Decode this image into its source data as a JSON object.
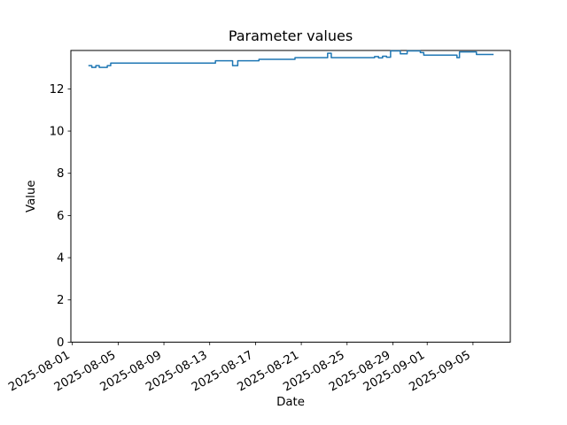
{
  "title": "Parameter values",
  "chart_data": {
    "type": "line",
    "title": "Parameter values",
    "xlabel": "Date",
    "ylabel": "Value",
    "line_color": "#1f77b4",
    "axis_color": "#000000",
    "background_color": "#ffffff",
    "legend": "none",
    "grid": false,
    "x_epoch": "2025-08-01",
    "x_tick_labels": [
      "2025-08-01",
      "2025-08-05",
      "2025-08-09",
      "2025-08-13",
      "2025-08-17",
      "2025-08-21",
      "2025-08-25",
      "2025-08-29",
      "2025-09-01",
      "2025-09-05"
    ],
    "x_tick_days": [
      0,
      4,
      8,
      12,
      16,
      20,
      24,
      28,
      31,
      35
    ],
    "x_tick_rotation_deg": 30,
    "y_ticks": [
      0,
      2,
      4,
      6,
      8,
      10,
      12
    ],
    "xlim_days": [
      -0.13,
      38.26
    ],
    "ylim": [
      0,
      13.82
    ],
    "series": [
      {
        "name": "parameter-values",
        "interpolation": "step-after",
        "end_day": 36.8,
        "step_points": [
          [
            1.4,
            13.1
          ],
          [
            1.7,
            13.02
          ],
          [
            2.05,
            13.1
          ],
          [
            2.35,
            13.02
          ],
          [
            3.05,
            13.1
          ],
          [
            3.35,
            13.22
          ],
          [
            12.5,
            13.33
          ],
          [
            14.0,
            13.1
          ],
          [
            14.45,
            13.33
          ],
          [
            16.3,
            13.4
          ],
          [
            19.45,
            13.48
          ],
          [
            22.3,
            13.69
          ],
          [
            22.62,
            13.48
          ],
          [
            26.4,
            13.53
          ],
          [
            26.75,
            13.47
          ],
          [
            27.1,
            13.55
          ],
          [
            27.45,
            13.5
          ],
          [
            27.8,
            13.8
          ],
          [
            28.65,
            13.66
          ],
          [
            29.25,
            13.8
          ],
          [
            30.4,
            13.72
          ],
          [
            30.7,
            13.6
          ],
          [
            33.6,
            13.48
          ],
          [
            33.82,
            13.75
          ],
          [
            35.3,
            13.63
          ]
        ]
      }
    ]
  }
}
